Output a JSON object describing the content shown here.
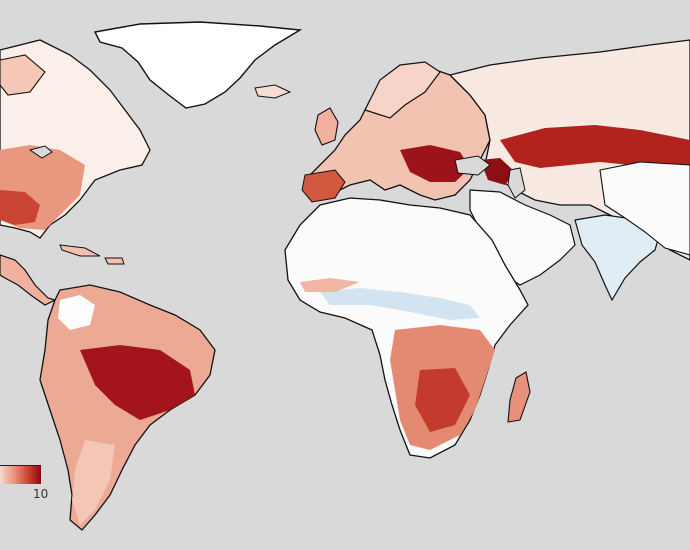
{
  "map": {
    "colorbar": {
      "max_label": "10",
      "colors": [
        "#f6d9cc",
        "#e8917a",
        "#c8412f",
        "#8b0a14"
      ]
    },
    "palette": {
      "ocean": "#d9d9d9",
      "land_neutral": "#fbfbfb",
      "warm_light": "#f7d8ca",
      "warm_mid": "#e58a70",
      "warm_strong": "#c43a2c",
      "warm_dark": "#870b13",
      "cool_light": "#d7e6f1",
      "border": "#111111"
    }
  }
}
